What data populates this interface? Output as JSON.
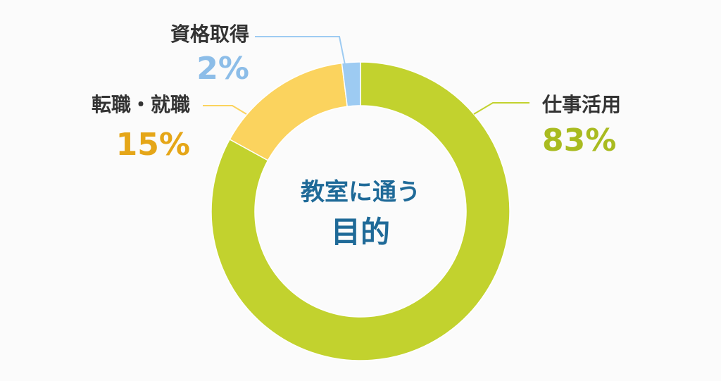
{
  "chart_data": {
    "type": "pie",
    "center_title": [
      "教室に通う",
      "目的"
    ],
    "slices": [
      {
        "label": "仕事活用",
        "value": 83,
        "value_label": "83%",
        "color": "#c2d22e",
        "label_color": "#a9bb20"
      },
      {
        "label": "転職・就職",
        "value": 15,
        "value_label": "15%",
        "color": "#fbd35e",
        "label_color": "#e5a618"
      },
      {
        "label": "資格取得",
        "value": 2,
        "value_label": "2%",
        "color": "#9dcbf2",
        "label_color": "#8cbde8"
      }
    ],
    "text_color": "#333333",
    "title_color": "#1f6a98"
  }
}
